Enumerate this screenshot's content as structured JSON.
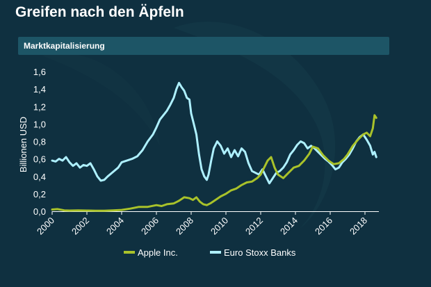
{
  "title": "Greifen nach den Äpfeln",
  "subtitle": "Marktkapitalisierung",
  "colors": {
    "background": "#0f3040",
    "subtitle_bar": "#1d5566",
    "apple": "#a9c22a",
    "banks": "#aef0ff",
    "axis": "#ffffff"
  },
  "chart_data": {
    "type": "line",
    "ylabel": "Billionen USD",
    "xlabel": "",
    "xlim": [
      2000,
      2018.8
    ],
    "ylim": [
      0,
      1.6
    ],
    "y_ticks": [
      "0,0",
      "0,2",
      "0,4",
      "0,6",
      "0,8",
      "1,0",
      "1,2",
      "1,4",
      "1,6"
    ],
    "x_ticks": [
      "2000",
      "2002",
      "2004",
      "2006",
      "2008",
      "2010",
      "2012",
      "2014",
      "2016",
      "2018"
    ],
    "legend_position": "bottom",
    "grid": false,
    "series": [
      {
        "name": "Apple Inc.",
        "color": "#a9c22a",
        "x": [
          2000,
          2000.3,
          2000.7,
          2001,
          2001.5,
          2002,
          2002.5,
          2003,
          2003.5,
          2004,
          2004.5,
          2005,
          2005.5,
          2006,
          2006.3,
          2006.6,
          2007,
          2007.3,
          2007.6,
          2007.9,
          2008.1,
          2008.3,
          2008.5,
          2008.7,
          2008.9,
          2009.1,
          2009.4,
          2009.7,
          2010,
          2010.3,
          2010.6,
          2010.9,
          2011.2,
          2011.5,
          2011.8,
          2012,
          2012.2,
          2012.4,
          2012.6,
          2012.8,
          2013,
          2013.3,
          2013.6,
          2013.9,
          2014.2,
          2014.5,
          2014.8,
          2015,
          2015.3,
          2015.6,
          2015.9,
          2016.2,
          2016.5,
          2016.8,
          2017,
          2017.3,
          2017.6,
          2017.9,
          2018.1,
          2018.3,
          2018.45,
          2018.55,
          2018.65
        ],
        "values": [
          0.02,
          0.025,
          0.01,
          0.008,
          0.01,
          0.008,
          0.006,
          0.006,
          0.01,
          0.015,
          0.03,
          0.05,
          0.05,
          0.07,
          0.06,
          0.08,
          0.09,
          0.12,
          0.16,
          0.15,
          0.13,
          0.16,
          0.11,
          0.08,
          0.07,
          0.09,
          0.13,
          0.17,
          0.2,
          0.24,
          0.26,
          0.3,
          0.33,
          0.34,
          0.38,
          0.42,
          0.5,
          0.58,
          0.62,
          0.5,
          0.42,
          0.38,
          0.44,
          0.5,
          0.52,
          0.58,
          0.66,
          0.74,
          0.72,
          0.64,
          0.58,
          0.54,
          0.55,
          0.6,
          0.65,
          0.75,
          0.82,
          0.88,
          0.9,
          0.86,
          0.95,
          1.1,
          1.07
        ]
      },
      {
        "name": "Euro Stoxx Banks",
        "color": "#aef0ff",
        "x": [
          2000,
          2000.2,
          2000.4,
          2000.6,
          2000.8,
          2001,
          2001.2,
          2001.4,
          2001.6,
          2001.8,
          2002,
          2002.2,
          2002.4,
          2002.6,
          2002.8,
          2003,
          2003.2,
          2003.5,
          2003.8,
          2004,
          2004.3,
          2004.6,
          2004.9,
          2005.2,
          2005.5,
          2005.8,
          2006,
          2006.2,
          2006.4,
          2006.6,
          2006.8,
          2007,
          2007.15,
          2007.3,
          2007.45,
          2007.6,
          2007.75,
          2007.9,
          2008,
          2008.15,
          2008.3,
          2008.45,
          2008.6,
          2008.75,
          2008.9,
          2009,
          2009.15,
          2009.3,
          2009.5,
          2009.7,
          2009.9,
          2010.1,
          2010.3,
          2010.5,
          2010.7,
          2010.9,
          2011.1,
          2011.3,
          2011.5,
          2011.7,
          2011.9,
          2012.1,
          2012.3,
          2012.5,
          2012.7,
          2012.9,
          2013.1,
          2013.3,
          2013.5,
          2013.7,
          2013.9,
          2014.1,
          2014.3,
          2014.5,
          2014.7,
          2014.9,
          2015.1,
          2015.3,
          2015.5,
          2015.7,
          2015.9,
          2016.1,
          2016.3,
          2016.5,
          2016.7,
          2016.9,
          2017.1,
          2017.3,
          2017.5,
          2017.7,
          2017.9,
          2018.1,
          2018.3,
          2018.45,
          2018.55,
          2018.65
        ],
        "values": [
          0.58,
          0.57,
          0.6,
          0.58,
          0.62,
          0.56,
          0.52,
          0.55,
          0.5,
          0.53,
          0.52,
          0.55,
          0.48,
          0.4,
          0.35,
          0.36,
          0.4,
          0.45,
          0.5,
          0.56,
          0.58,
          0.6,
          0.63,
          0.7,
          0.8,
          0.88,
          0.96,
          1.05,
          1.1,
          1.15,
          1.22,
          1.3,
          1.4,
          1.47,
          1.42,
          1.38,
          1.3,
          1.28,
          1.12,
          1.0,
          0.88,
          0.65,
          0.48,
          0.4,
          0.36,
          0.42,
          0.58,
          0.72,
          0.8,
          0.75,
          0.66,
          0.72,
          0.62,
          0.7,
          0.63,
          0.72,
          0.68,
          0.55,
          0.46,
          0.44,
          0.42,
          0.48,
          0.4,
          0.32,
          0.38,
          0.44,
          0.46,
          0.5,
          0.56,
          0.65,
          0.7,
          0.76,
          0.8,
          0.78,
          0.72,
          0.75,
          0.72,
          0.68,
          0.64,
          0.6,
          0.57,
          0.53,
          0.48,
          0.5,
          0.56,
          0.6,
          0.65,
          0.72,
          0.8,
          0.85,
          0.88,
          0.82,
          0.75,
          0.65,
          0.68,
          0.62
        ]
      }
    ]
  }
}
